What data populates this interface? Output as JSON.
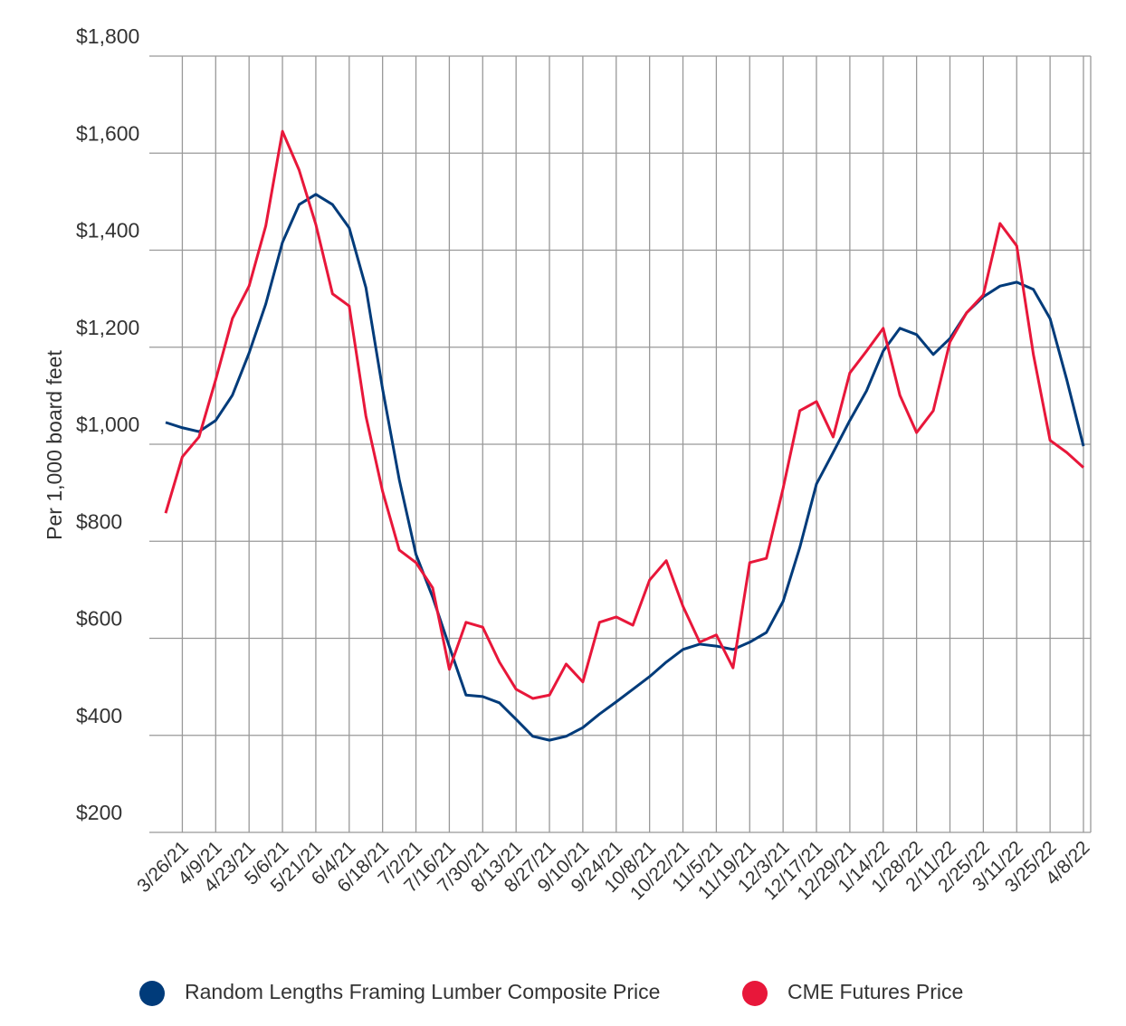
{
  "chart_data": {
    "type": "line",
    "ylabel": "Per 1,000 board feet",
    "categories": [
      null,
      "3/26/21",
      null,
      "4/9/21",
      null,
      "4/23/21",
      null,
      "5/6/21",
      null,
      "5/21/21",
      null,
      "6/4/21",
      null,
      "6/18/21",
      null,
      "7/2/21",
      null,
      "7/16/21",
      null,
      "7/30/21",
      null,
      "8/13/21",
      null,
      "8/27/21",
      null,
      "9/10/21",
      null,
      "9/24/21",
      null,
      "10/8/21",
      null,
      "10/22/21",
      null,
      "11/5/21",
      null,
      "11/19/21",
      null,
      "12/3/21",
      null,
      "12/17/21",
      null,
      "12/29/21",
      null,
      "1/14/22",
      null,
      "1/28/22",
      null,
      "2/11/22",
      null,
      "2/25/22",
      null,
      "3/11/22",
      null,
      "3/25/22",
      null,
      "4/8/22"
    ],
    "series": [
      {
        "name": "Random Lengths Framing Lumber Composite Price",
        "color": "#003b7a",
        "values": [
          1045,
          1034,
          1026,
          1049,
          1101,
          1188,
          1289,
          1416,
          1494,
          1515,
          1494,
          1446,
          1323,
          1114,
          927,
          773,
          685,
          583,
          483,
          480,
          467,
          433,
          398,
          390,
          398,
          416,
          444,
          469,
          495,
          521,
          551,
          577,
          588,
          584,
          577,
          592,
          612,
          676,
          787,
          918,
          983,
          1049,
          1110,
          1192,
          1239,
          1226,
          1185,
          1218,
          1271,
          1304,
          1326,
          1334,
          1319,
          1259,
          1133,
          996
        ]
      },
      {
        "name": "CME Futures Price",
        "color": "#e8173a",
        "values": [
          858,
          974,
          1015,
          1133,
          1259,
          1326,
          1450,
          1645,
          1565,
          1453,
          1310,
          1285,
          1058,
          903,
          782,
          756,
          704,
          536,
          633,
          623,
          551,
          495,
          476,
          483,
          547,
          510,
          633,
          644,
          627,
          720,
          760,
          666,
          592,
          607,
          539,
          756,
          765,
          909,
          1069,
          1088,
          1015,
          1147,
          1192,
          1239,
          1101,
          1024,
          1069,
          1211,
          1271,
          1308,
          1455,
          1409,
          1185,
          1008,
          983,
          952
        ]
      }
    ],
    "ylim": [
      200,
      1800
    ],
    "yticks": [
      {
        "value": 200,
        "label": "$200"
      },
      {
        "value": 400,
        "label": "$400"
      },
      {
        "value": 600,
        "label": "$600"
      },
      {
        "value": 800,
        "label": "$800"
      },
      {
        "value": 1000,
        "label": "$1,000"
      },
      {
        "value": 1200,
        "label": "$1,200"
      },
      {
        "value": 1400,
        "label": "$1,400"
      },
      {
        "value": 1600,
        "label": "$1,600"
      },
      {
        "value": 1800,
        "label": "$1,800"
      }
    ],
    "grid": true
  }
}
